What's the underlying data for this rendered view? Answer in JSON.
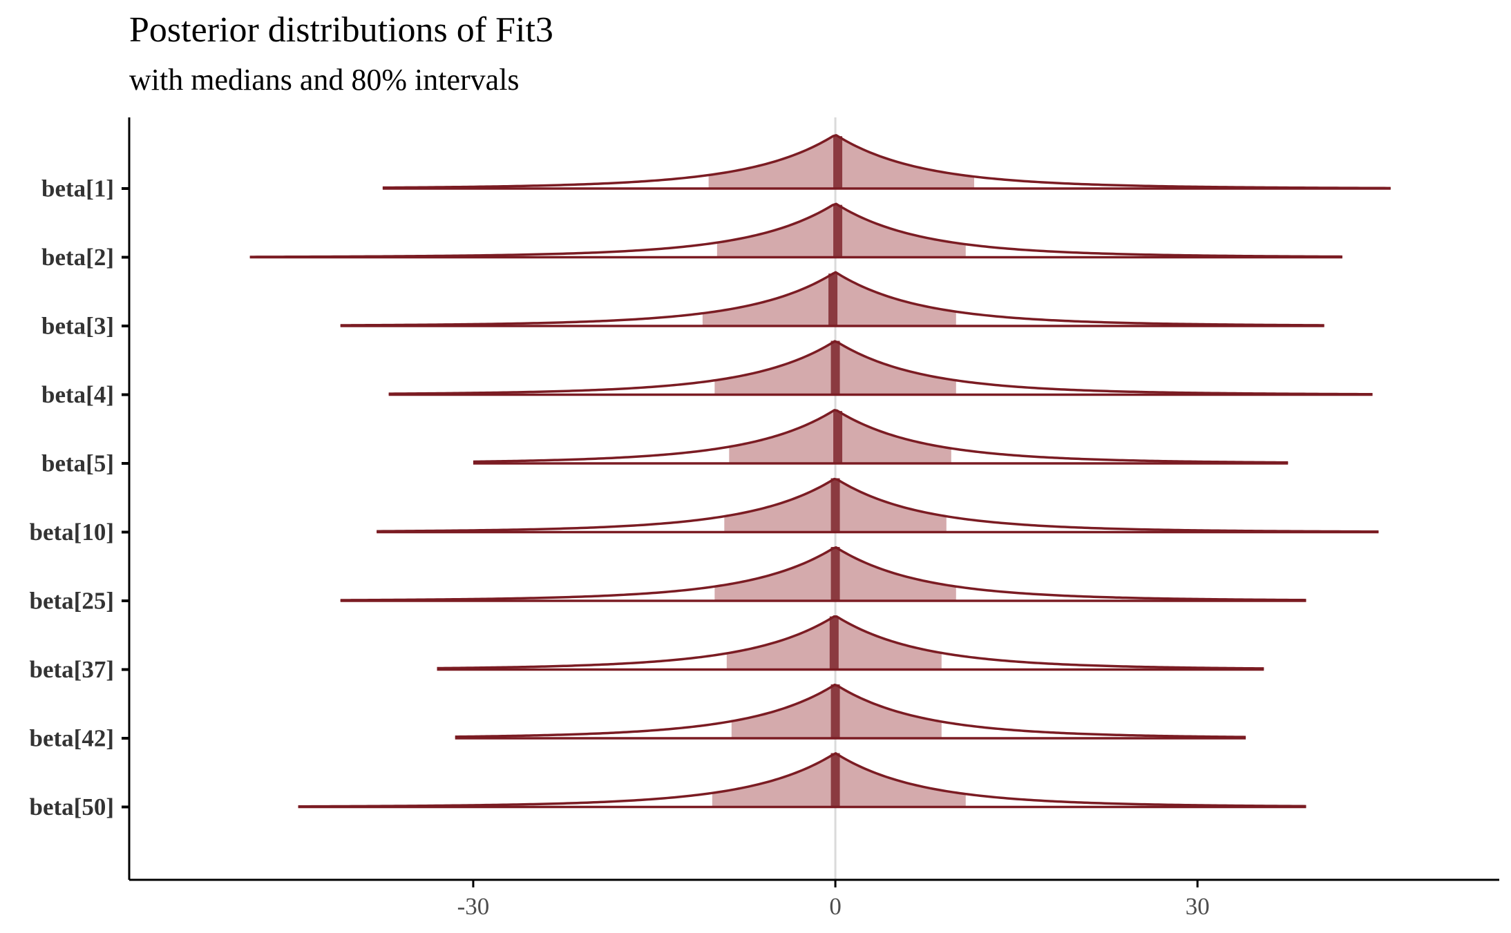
{
  "chart_data": {
    "type": "ridgeline",
    "title": "Posterior distributions of Fit3",
    "subtitle": "with medians and 80% intervals",
    "xlabel": "",
    "ylabel": "",
    "xlim": [
      -58.5,
      55
    ],
    "x_ticks": [
      -30,
      0,
      30
    ],
    "x_tick_labels": [
      "-30",
      "0",
      "30"
    ],
    "reference_line_x": 0,
    "grid": false,
    "colors": {
      "outline": "#7b1c23",
      "interval_fill": "#d4aaac",
      "median_line": "#8b3a40",
      "reference_line": "#dadada",
      "axis": "#000000"
    },
    "parameters": [
      {
        "label": "beta[1]",
        "min": -37.5,
        "max": 46.0,
        "median": 0.2,
        "interval_80": [
          -10.5,
          11.5
        ],
        "peak_height": 1.0
      },
      {
        "label": "beta[2]",
        "min": -48.5,
        "max": 42.0,
        "median": 0.2,
        "interval_80": [
          -9.8,
          10.8
        ],
        "peak_height": 1.0
      },
      {
        "label": "beta[3]",
        "min": -41.0,
        "max": 40.5,
        "median": -0.2,
        "interval_80": [
          -11.0,
          10.0
        ],
        "peak_height": 1.0
      },
      {
        "label": "beta[4]",
        "min": -37.0,
        "max": 44.5,
        "median": 0.0,
        "interval_80": [
          -10.0,
          10.0
        ],
        "peak_height": 1.0
      },
      {
        "label": "beta[5]",
        "min": -30.0,
        "max": 37.5,
        "median": 0.2,
        "interval_80": [
          -8.8,
          9.6
        ],
        "peak_height": 1.0
      },
      {
        "label": "beta[10]",
        "min": -38.0,
        "max": 45.0,
        "median": 0.0,
        "interval_80": [
          -9.2,
          9.2
        ],
        "peak_height": 1.0
      },
      {
        "label": "beta[25]",
        "min": -41.0,
        "max": 39.0,
        "median": 0.0,
        "interval_80": [
          -10.0,
          10.0
        ],
        "peak_height": 1.0
      },
      {
        "label": "beta[37]",
        "min": -33.0,
        "max": 35.5,
        "median": -0.1,
        "interval_80": [
          -9.0,
          8.8
        ],
        "peak_height": 1.0
      },
      {
        "label": "beta[42]",
        "min": -31.5,
        "max": 34.0,
        "median": 0.0,
        "interval_80": [
          -8.6,
          8.8
        ],
        "peak_height": 1.0
      },
      {
        "label": "beta[50]",
        "min": -44.5,
        "max": 39.0,
        "median": 0.0,
        "interval_80": [
          -10.2,
          10.8
        ],
        "peak_height": 1.0
      }
    ]
  }
}
